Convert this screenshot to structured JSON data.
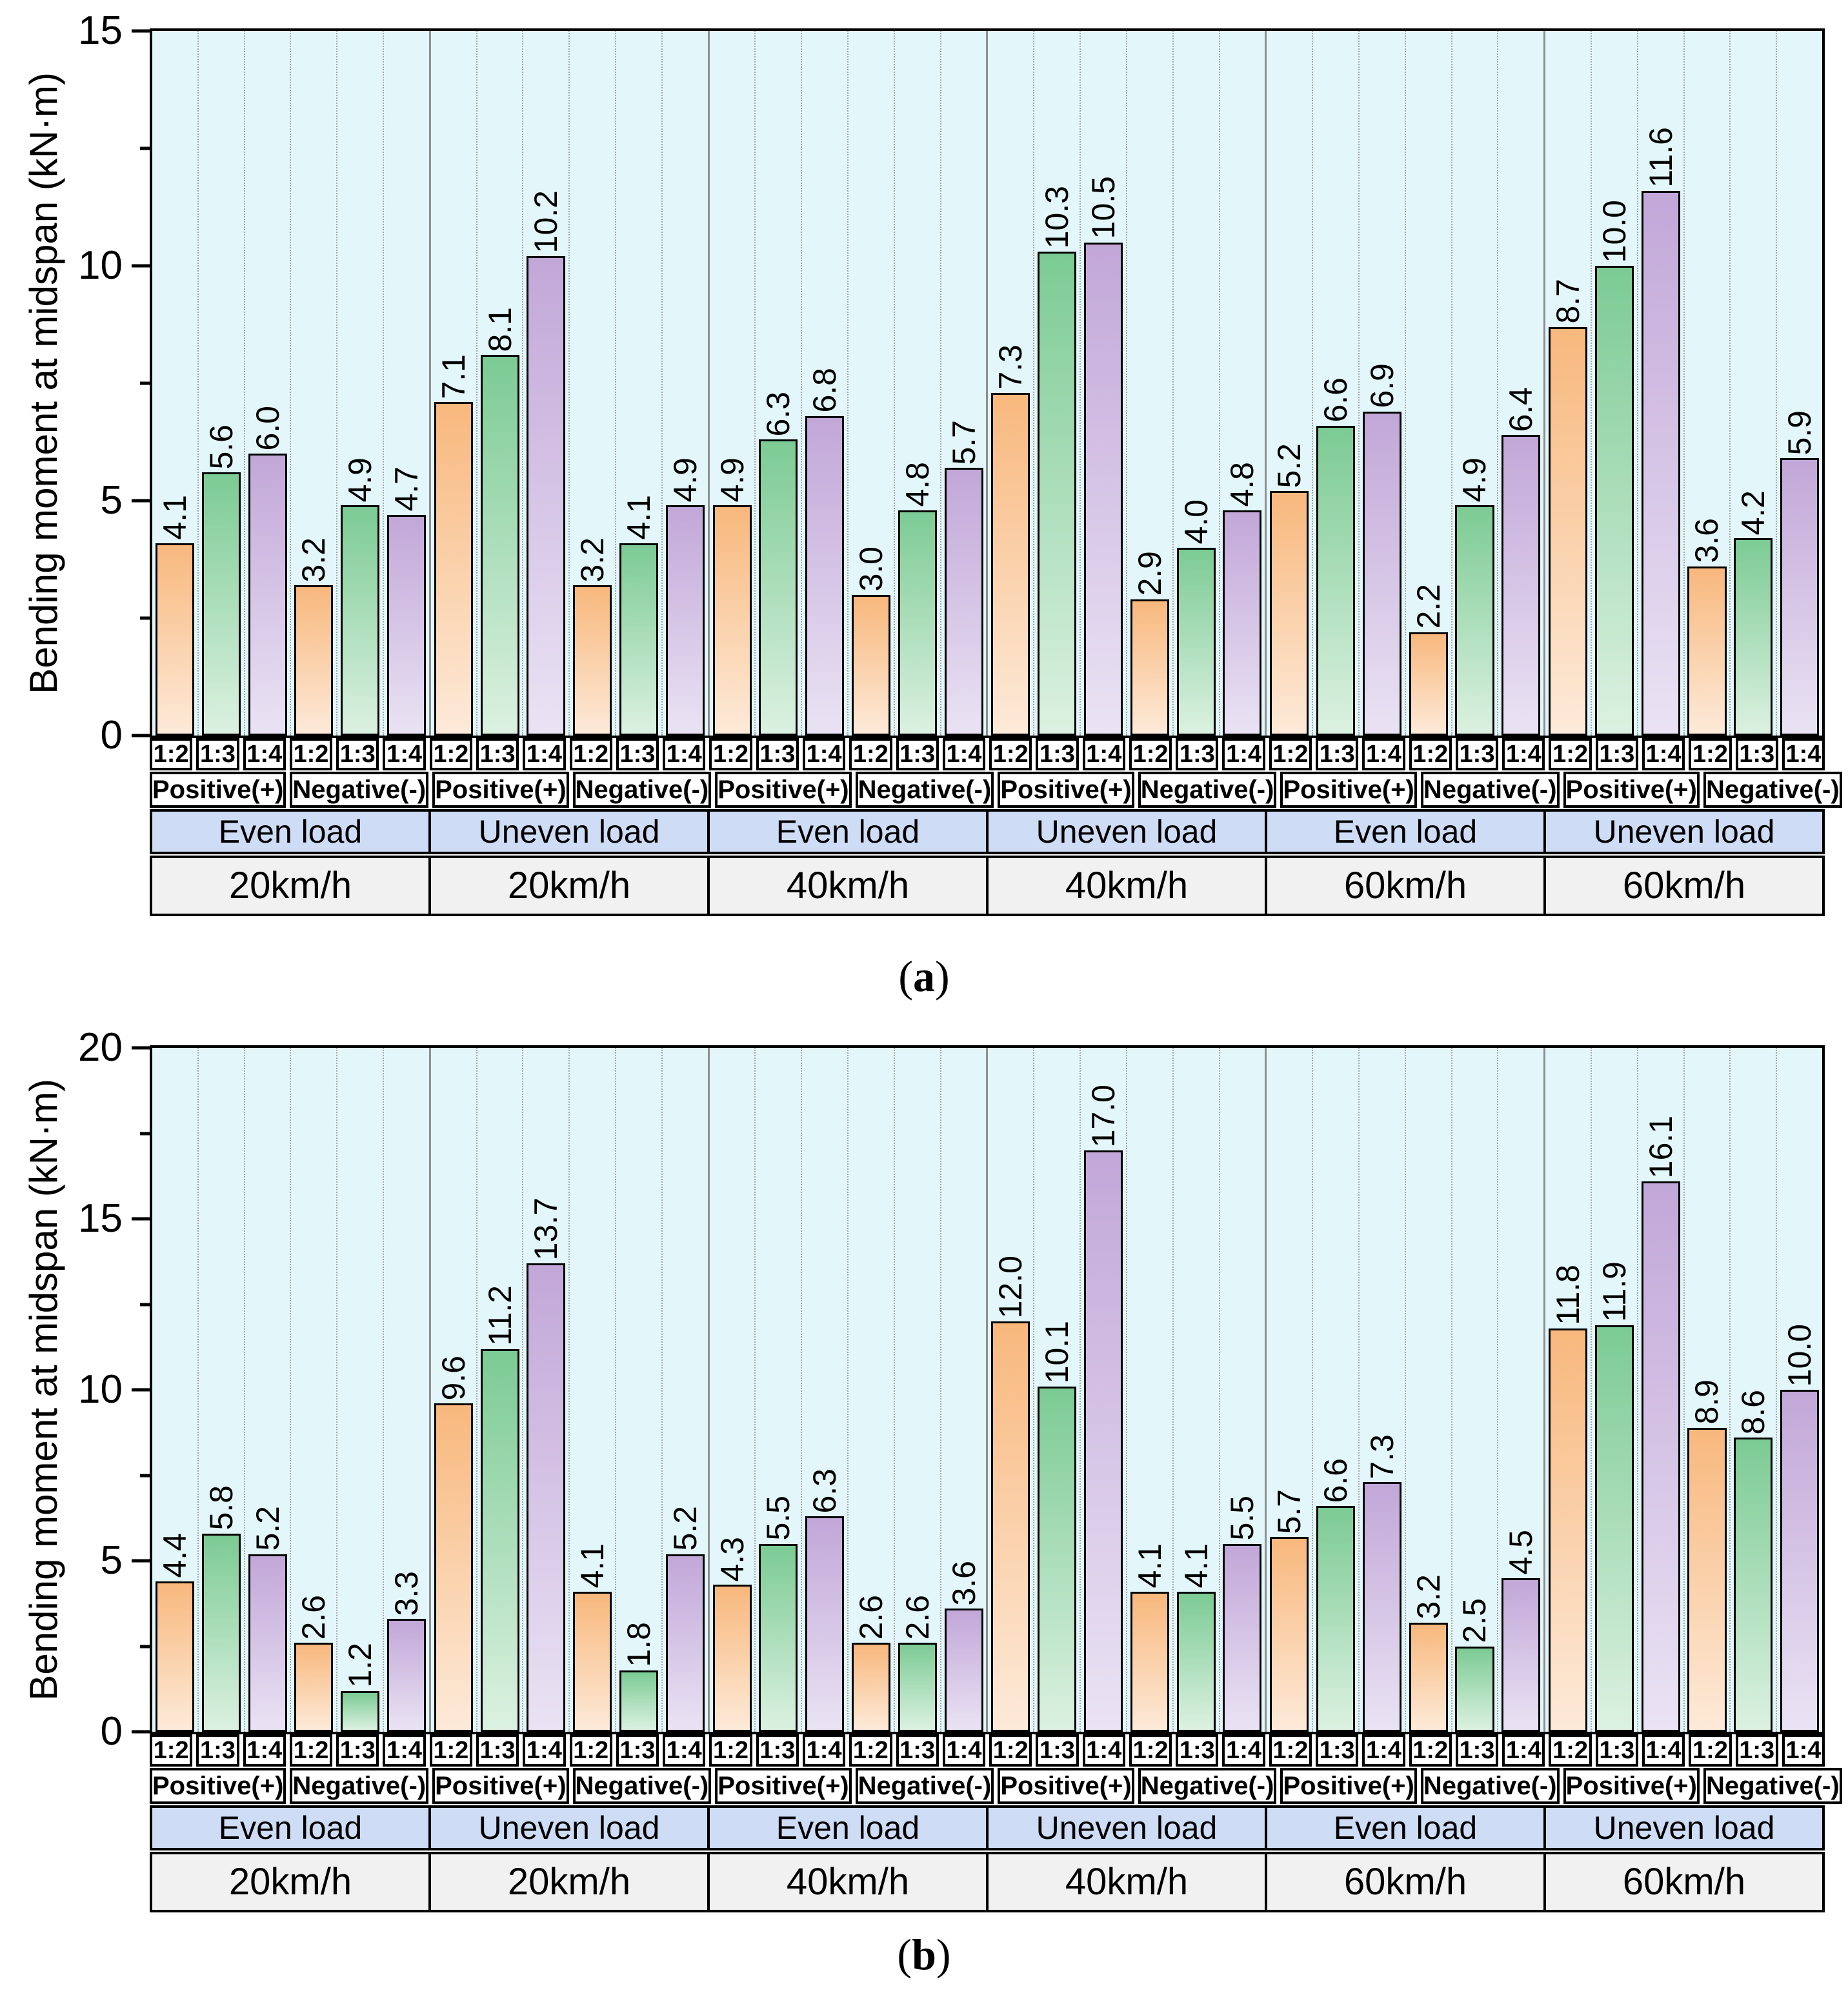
{
  "ui": {
    "paren_open": "(",
    "paren_close": ")"
  },
  "colors": {
    "plot_bg": "#e3f7fa",
    "bar_styles": [
      {
        "ratio": "1:2",
        "top": "#f8b87d",
        "bottom": "#fdead9"
      },
      {
        "ratio": "1:3",
        "top": "#7ccb94",
        "bottom": "#dcf1e1"
      },
      {
        "ratio": "1:4",
        "top": "#c2a7d8",
        "bottom": "#eae3f4"
      }
    ],
    "group_divider": "#8f8f8f",
    "grid_dotted": "#a8a8a8",
    "load_row_bg": "#cedcf5",
    "speed_row_bg": "#f1f1f1",
    "axis_color": "#000000"
  },
  "chart_data": [
    {
      "type": "bar",
      "panel": "a",
      "title": "",
      "xlabel": "",
      "ylabel": "Bending moment at midspan (kN·m)",
      "ylim": [
        0,
        15
      ],
      "ytick_major": 5,
      "ytick_minor": 2.5,
      "grid": "vertical-dotted",
      "legend": "none",
      "ratio_labels": [
        "1:2",
        "1:3",
        "1:4"
      ],
      "sign_labels": [
        "Positive(+)",
        "Negative(-)"
      ],
      "groups": [
        {
          "speed": "20km/h",
          "load": "Even load",
          "positive": [
            4.1,
            5.6,
            6.0
          ],
          "negative": [
            3.2,
            4.9,
            4.7
          ]
        },
        {
          "speed": "20km/h",
          "load": "Uneven load",
          "positive": [
            7.1,
            8.1,
            10.2
          ],
          "negative": [
            3.2,
            4.1,
            4.9
          ]
        },
        {
          "speed": "40km/h",
          "load": "Even load",
          "positive": [
            4.9,
            6.3,
            6.8
          ],
          "negative": [
            3.0,
            4.8,
            5.7
          ]
        },
        {
          "speed": "40km/h",
          "load": "Uneven load",
          "positive": [
            7.3,
            10.3,
            10.5
          ],
          "negative": [
            2.9,
            4.0,
            4.8
          ]
        },
        {
          "speed": "60km/h",
          "load": "Even load",
          "positive": [
            5.2,
            6.6,
            6.9
          ],
          "negative": [
            2.2,
            4.9,
            6.4
          ]
        },
        {
          "speed": "60km/h",
          "load": "Uneven load",
          "positive": [
            8.7,
            10.0,
            11.6
          ],
          "negative": [
            3.6,
            4.2,
            5.9
          ]
        }
      ]
    },
    {
      "type": "bar",
      "panel": "b",
      "title": "",
      "xlabel": "",
      "ylabel": "Bending moment at midspan (kN·m)",
      "ylim": [
        0,
        20
      ],
      "ytick_major": 5,
      "ytick_minor": 2.5,
      "grid": "vertical-dotted",
      "legend": "none",
      "ratio_labels": [
        "1:2",
        "1:3",
        "1:4"
      ],
      "sign_labels": [
        "Positive(+)",
        "Negative(-)"
      ],
      "groups": [
        {
          "speed": "20km/h",
          "load": "Even load",
          "positive": [
            4.4,
            5.8,
            5.2
          ],
          "negative": [
            2.6,
            1.2,
            3.3
          ]
        },
        {
          "speed": "20km/h",
          "load": "Uneven load",
          "positive": [
            9.6,
            11.2,
            13.7
          ],
          "negative": [
            4.1,
            1.8,
            5.2
          ]
        },
        {
          "speed": "40km/h",
          "load": "Even load",
          "positive": [
            4.3,
            5.5,
            6.3
          ],
          "negative": [
            2.6,
            2.6,
            3.6
          ]
        },
        {
          "speed": "40km/h",
          "load": "Uneven load",
          "positive": [
            12.0,
            10.1,
            17.0
          ],
          "negative": [
            4.1,
            4.1,
            5.5
          ]
        },
        {
          "speed": "60km/h",
          "load": "Even load",
          "positive": [
            5.7,
            6.6,
            7.3
          ],
          "negative": [
            3.2,
            2.5,
            4.5
          ]
        },
        {
          "speed": "60km/h",
          "load": "Uneven load",
          "positive": [
            11.8,
            11.9,
            16.1
          ],
          "negative": [
            8.9,
            8.6,
            10.0
          ]
        }
      ]
    }
  ]
}
